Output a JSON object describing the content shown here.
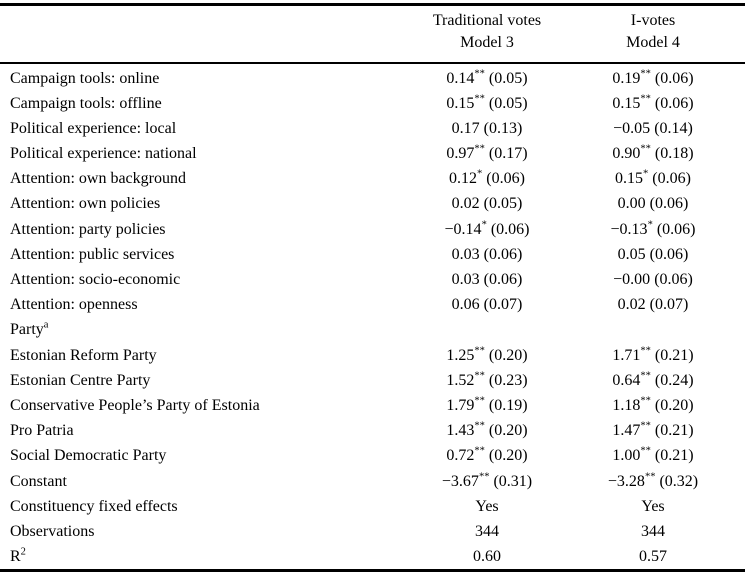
{
  "table": {
    "columns": [
      {
        "group": "Traditional votes",
        "model": "Model 3"
      },
      {
        "group": "I-votes",
        "model": "Model 4"
      }
    ],
    "rows": [
      {
        "label": "Campaign tools: online",
        "cells": [
          {
            "coef": "0.14",
            "stars": "**",
            "se": "(0.05)"
          },
          {
            "coef": "0.19",
            "stars": "**",
            "se": "(0.06)"
          }
        ]
      },
      {
        "label": "Campaign tools: offline",
        "cells": [
          {
            "coef": "0.15",
            "stars": "**",
            "se": "(0.05)"
          },
          {
            "coef": "0.15",
            "stars": "**",
            "se": "(0.06)"
          }
        ]
      },
      {
        "label": "Political experience: local",
        "cells": [
          {
            "coef": "0.17",
            "stars": "",
            "se": "(0.13)"
          },
          {
            "coef": "−0.05",
            "stars": "",
            "se": "(0.14)"
          }
        ]
      },
      {
        "label": "Political experience: national",
        "cells": [
          {
            "coef": "0.97",
            "stars": "**",
            "se": "(0.17)"
          },
          {
            "coef": "0.90",
            "stars": "**",
            "se": "(0.18)"
          }
        ]
      },
      {
        "label": "Attention: own background",
        "cells": [
          {
            "coef": "0.12",
            "stars": "*",
            "se": "(0.06)"
          },
          {
            "coef": "0.15",
            "stars": "*",
            "se": "(0.06)"
          }
        ]
      },
      {
        "label": "Attention: own policies",
        "cells": [
          {
            "coef": "0.02",
            "stars": "",
            "se": "(0.05)"
          },
          {
            "coef": "0.00",
            "stars": "",
            "se": "(0.06)"
          }
        ]
      },
      {
        "label": "Attention: party policies",
        "cells": [
          {
            "coef": "−0.14",
            "stars": "*",
            "se": "(0.06)"
          },
          {
            "coef": "−0.13",
            "stars": "*",
            "se": "(0.06)"
          }
        ]
      },
      {
        "label": "Attention: public services",
        "cells": [
          {
            "coef": "0.03",
            "stars": "",
            "se": "(0.06)"
          },
          {
            "coef": "0.05",
            "stars": "",
            "se": "(0.06)"
          }
        ]
      },
      {
        "label": "Attention: socio-economic",
        "cells": [
          {
            "coef": "0.03",
            "stars": "",
            "se": "(0.06)"
          },
          {
            "coef": "−0.00",
            "stars": "",
            "se": "(0.06)"
          }
        ]
      },
      {
        "label": "Attention: openness",
        "cells": [
          {
            "coef": "0.06",
            "stars": "",
            "se": "(0.07)"
          },
          {
            "coef": "0.02",
            "stars": "",
            "se": "(0.07)"
          }
        ]
      },
      {
        "label": "Party",
        "label_sup": "a",
        "cells": [
          null,
          null
        ]
      },
      {
        "label": "Estonian Reform Party",
        "cells": [
          {
            "coef": "1.25",
            "stars": "**",
            "se": "(0.20)"
          },
          {
            "coef": "1.71",
            "stars": "**",
            "se": "(0.21)"
          }
        ]
      },
      {
        "label": "Estonian Centre Party",
        "cells": [
          {
            "coef": "1.52",
            "stars": "**",
            "se": "(0.23)"
          },
          {
            "coef": "0.64",
            "stars": "**",
            "se": "(0.24)"
          }
        ]
      },
      {
        "label": "Conservative People’s Party of Estonia",
        "cells": [
          {
            "coef": "1.79",
            "stars": "**",
            "se": "(0.19)"
          },
          {
            "coef": "1.18",
            "stars": "**",
            "se": "(0.20)"
          }
        ]
      },
      {
        "label": "Pro Patria",
        "cells": [
          {
            "coef": "1.43",
            "stars": "**",
            "se": "(0.20)"
          },
          {
            "coef": "1.47",
            "stars": "**",
            "se": "(0.21)"
          }
        ]
      },
      {
        "label": "Social Democratic Party",
        "cells": [
          {
            "coef": "0.72",
            "stars": "**",
            "se": "(0.20)"
          },
          {
            "coef": "1.00",
            "stars": "**",
            "se": "(0.21)"
          }
        ]
      },
      {
        "label": "Constant",
        "cells": [
          {
            "coef": "−3.67",
            "stars": "**",
            "se": "(0.31)"
          },
          {
            "coef": "−3.28",
            "stars": "**",
            "se": "(0.32)"
          }
        ]
      },
      {
        "label": "Constituency fixed effects",
        "cells": [
          {
            "coef": "Yes",
            "stars": "",
            "se": ""
          },
          {
            "coef": "Yes",
            "stars": "",
            "se": ""
          }
        ]
      },
      {
        "label": "Observations",
        "cells": [
          {
            "coef": "344",
            "stars": "",
            "se": ""
          },
          {
            "coef": "344",
            "stars": "",
            "se": ""
          }
        ]
      },
      {
        "label": "R",
        "label_sup": "2",
        "cells": [
          {
            "coef": "0.60",
            "stars": "",
            "se": ""
          },
          {
            "coef": "0.57",
            "stars": "",
            "se": ""
          }
        ]
      }
    ]
  }
}
